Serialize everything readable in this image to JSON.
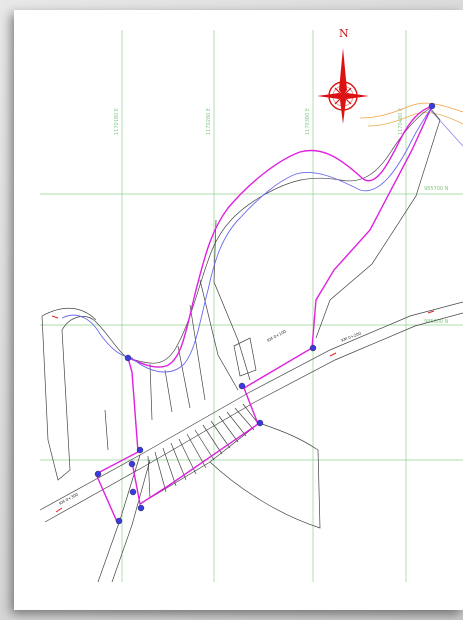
{
  "map": {
    "north_label": "N",
    "grid_labels": {
      "x1": "1170180 E",
      "x2": "1170280 E",
      "x3": "1170380 E",
      "x4": "1170480 E",
      "y1": "985700 N",
      "y2": "985600 N"
    },
    "road_labels": [
      "KM 0+100",
      "KM 0+200",
      "KM 0+300"
    ],
    "colors": {
      "grid": "#8fd08f",
      "alignment_magenta": "#e020e0",
      "alignment_blue": "#6a6af0",
      "parcels": "#444444",
      "contour": "#f0a040",
      "compass": "#dd1111"
    },
    "icons": [
      "north-arrow-icon",
      "survey-point-icon"
    ]
  }
}
